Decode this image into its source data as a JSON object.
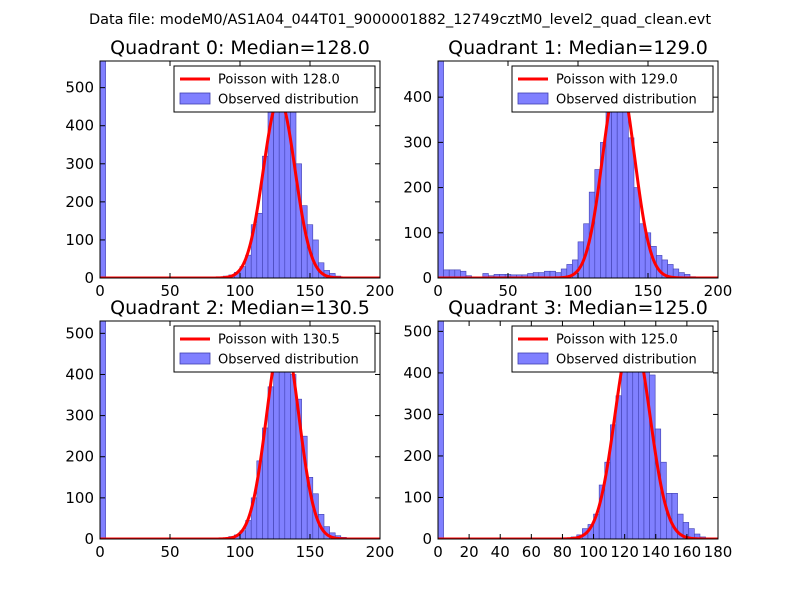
{
  "figure": {
    "suptitle": "Data file: modeM0/AS1A04_044T01_9000001882_12749cztM0_level2_quad_clean.evt"
  },
  "colors": {
    "bar_fill": "#8080ff",
    "bar_stroke": "#3f3fb0",
    "poisson_line": "#ff0000",
    "axes": "#000000",
    "legend_border": "#000000"
  },
  "chart_data": [
    {
      "type": "bar",
      "title": "Quadrant 0: Median=128.0",
      "xlim": [
        0,
        200
      ],
      "ylim": [
        0,
        570
      ],
      "xticks": [
        0,
        50,
        100,
        150,
        200
      ],
      "xtick_labels": [
        "0",
        "50",
        "100",
        "150",
        "200"
      ],
      "yticks": [
        0,
        100,
        200,
        300,
        400,
        500
      ],
      "ytick_labels": [
        "0",
        "100",
        "200",
        "300",
        "400",
        "500"
      ],
      "legend_position": "upper-right",
      "legend": [
        "Poisson with 128.0",
        "Observed distribution"
      ],
      "series": [
        {
          "name": "Observed distribution",
          "bin_width": 4,
          "x": [
            0,
            80,
            84,
            88,
            92,
            96,
            100,
            104,
            108,
            112,
            116,
            120,
            124,
            128,
            132,
            136,
            140,
            144,
            148,
            152,
            156,
            160,
            164,
            168,
            172,
            176,
            180,
            184
          ],
          "values": [
            570,
            2,
            3,
            5,
            8,
            15,
            30,
            60,
            140,
            170,
            320,
            440,
            550,
            540,
            500,
            440,
            300,
            190,
            140,
            100,
            40,
            20,
            12,
            5,
            3,
            2,
            1,
            1
          ]
        },
        {
          "name": "Poisson with 128.0",
          "mean": 128.0,
          "peak": 470,
          "x_range": [
            0,
            200
          ]
        }
      ]
    },
    {
      "type": "bar",
      "title": "Quadrant 1: Median=129.0",
      "xlim": [
        0,
        200
      ],
      "ylim": [
        0,
        480
      ],
      "xticks": [
        0,
        50,
        100,
        150,
        200
      ],
      "xtick_labels": [
        "0",
        "50",
        "100",
        "150",
        "200"
      ],
      "yticks": [
        0,
        100,
        200,
        300,
        400
      ],
      "ytick_labels": [
        "0",
        "100",
        "200",
        "300",
        "400"
      ],
      "legend_position": "upper-right",
      "legend": [
        "Poisson with 129.0",
        "Observed distribution"
      ],
      "series": [
        {
          "name": "Observed distribution",
          "bin_width": 4,
          "x": [
            0,
            4,
            8,
            12,
            16,
            20,
            24,
            28,
            32,
            36,
            40,
            44,
            48,
            52,
            56,
            60,
            64,
            68,
            72,
            76,
            80,
            84,
            88,
            92,
            96,
            100,
            104,
            108,
            112,
            116,
            120,
            124,
            128,
            132,
            136,
            140,
            144,
            148,
            152,
            156,
            160,
            164,
            168,
            172,
            176,
            180,
            184
          ],
          "values": [
            480,
            18,
            18,
            18,
            15,
            5,
            2,
            2,
            10,
            5,
            8,
            8,
            8,
            7,
            7,
            7,
            10,
            12,
            12,
            15,
            15,
            12,
            20,
            30,
            40,
            80,
            120,
            190,
            240,
            300,
            390,
            460,
            450,
            400,
            310,
            200,
            120,
            100,
            70,
            50,
            40,
            30,
            20,
            12,
            8,
            3,
            2
          ]
        },
        {
          "name": "Poisson with 129.0",
          "mean": 129.0,
          "peak": 445,
          "x_range": [
            0,
            200
          ]
        }
      ]
    },
    {
      "type": "bar",
      "title": "Quadrant 2: Median=130.5",
      "xlim": [
        0,
        200
      ],
      "ylim": [
        0,
        530
      ],
      "xticks": [
        0,
        50,
        100,
        150,
        200
      ],
      "xtick_labels": [
        "0",
        "50",
        "100",
        "150",
        "200"
      ],
      "yticks": [
        0,
        100,
        200,
        300,
        400,
        500
      ],
      "ytick_labels": [
        "0",
        "100",
        "200",
        "300",
        "400",
        "500"
      ],
      "legend_position": "upper-right",
      "legend": [
        "Poisson with 130.5",
        "Observed distribution"
      ],
      "series": [
        {
          "name": "Observed distribution",
          "bin_width": 4,
          "x": [
            0,
            80,
            84,
            88,
            92,
            96,
            100,
            104,
            108,
            112,
            116,
            120,
            124,
            128,
            132,
            136,
            140,
            144,
            148,
            152,
            156,
            160,
            164,
            168,
            172,
            176,
            180,
            184
          ],
          "values": [
            530,
            2,
            2,
            3,
            6,
            10,
            20,
            45,
            100,
            190,
            270,
            370,
            480,
            490,
            450,
            400,
            340,
            250,
            150,
            110,
            60,
            30,
            15,
            8,
            4,
            2,
            1,
            1
          ]
        },
        {
          "name": "Poisson with 130.5",
          "mean": 130.5,
          "peak": 500,
          "x_range": [
            0,
            200
          ]
        }
      ]
    },
    {
      "type": "bar",
      "title": "Quadrant 3: Median=125.0",
      "xlim": [
        0,
        180
      ],
      "ylim": [
        0,
        525
      ],
      "xticks": [
        0,
        20,
        40,
        60,
        80,
        100,
        120,
        140,
        160,
        180
      ],
      "xtick_labels": [
        "0",
        "20",
        "40",
        "60",
        "80",
        "100",
        "120",
        "140",
        "160",
        "180"
      ],
      "yticks": [
        0,
        100,
        200,
        300,
        400,
        500
      ],
      "ytick_labels": [
        "0",
        "100",
        "200",
        "300",
        "400",
        "500"
      ],
      "legend_position": "upper-right",
      "legend": [
        "Poisson with 125.0",
        "Observed distribution"
      ],
      "series": [
        {
          "name": "Observed distribution",
          "bin_width": 3.6,
          "x": [
            0,
            82,
            85.6,
            89.2,
            92.8,
            96.4,
            100,
            103.6,
            107.2,
            110.8,
            114.4,
            118,
            121.6,
            125.2,
            128.8,
            132.4,
            136,
            139.6,
            143.2,
            146.8,
            150.4,
            154,
            157.6,
            161.2,
            164.8,
            168.4
          ],
          "values": [
            525,
            3,
            5,
            10,
            25,
            35,
            60,
            130,
            185,
            275,
            345,
            410,
            505,
            500,
            500,
            435,
            395,
            265,
            185,
            110,
            110,
            60,
            40,
            25,
            12,
            5
          ]
        },
        {
          "name": "Poisson with 125.0",
          "mean": 125.0,
          "peak": 495,
          "x_range": [
            0,
            180
          ]
        }
      ]
    }
  ]
}
